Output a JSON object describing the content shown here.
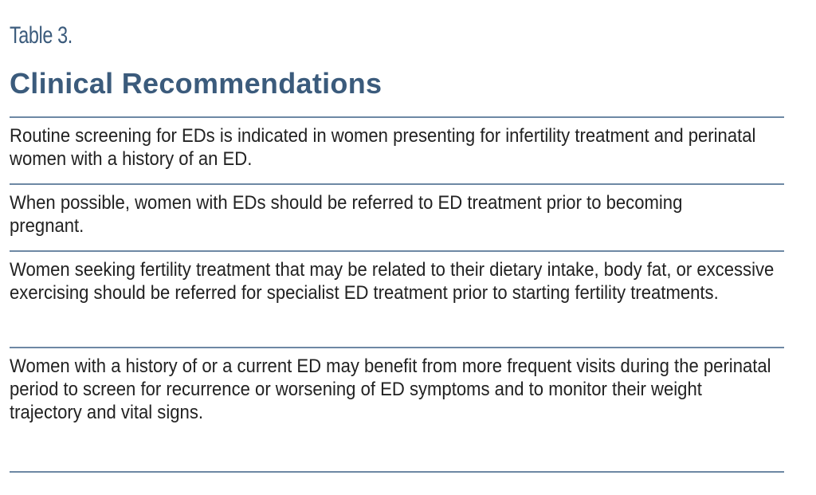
{
  "table_label": "Table 3.",
  "title": "Clinical Recommendations",
  "rows": [
    "Routine screening for EDs is indicated in women presenting for infertility treatment and perinatal women with a history of an ED.",
    "When possible, women with EDs should be referred to ED treatment prior to becoming pregnant.",
    "Women seeking fertility treatment that may be related to their dietary intake, body fat, or excessive exercising should be referred for specialist ED treatment prior to starting fertility treatments.",
    "Women with a history of or a current ED may benefit from more frequent visits during the perinatal period to screen for recurrence or worsening of ED symptoms and to monitor their weight trajectory and vital signs."
  ],
  "colors": {
    "heading": "#3b5b7c",
    "rule": "#6d88a4",
    "text": "#222222"
  }
}
